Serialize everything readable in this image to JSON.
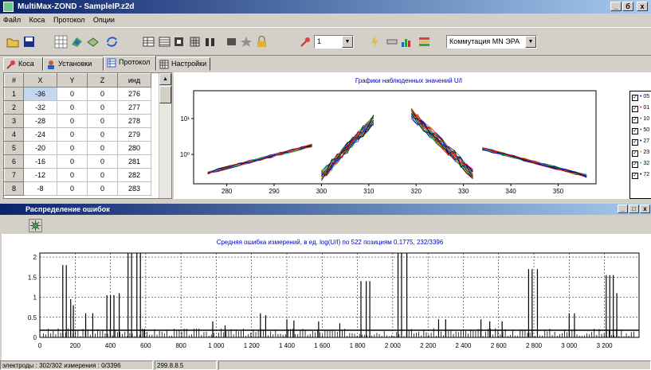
{
  "window": {
    "title": "MultiMax-ZOND - SampleIP.z2d",
    "btn_min": "_",
    "btn_max": "б",
    "btn_close": "x"
  },
  "menu": [
    "Файл",
    "Коса",
    "Протокол",
    "Опции"
  ],
  "toolbar": {
    "icons": [
      "open-icon",
      "save-icon",
      "grid-toggle-icon",
      "map-3d-icon",
      "layers-icon",
      "refresh-icon",
      "table-icon",
      "table-alt-icon",
      "columns-icon",
      "grid-icon",
      "binoculars-icon",
      "block-icon",
      "star-icon",
      "lock-icon",
      "electrode-pin-icon",
      "lightning-icon",
      "battery-icon",
      "bar-chart-icon",
      "palette-icon"
    ],
    "number_combo": "1",
    "commutation_combo": "Коммутация MN ЭРА"
  },
  "tabs": [
    {
      "label": "Коса",
      "icon": "pin-icon",
      "active": false
    },
    {
      "label": "Установки",
      "icon": "user-icon",
      "active": false
    },
    {
      "label": "Протокол",
      "icon": "table-icon",
      "active": true
    },
    {
      "label": "Настройки",
      "icon": "settings-grid-icon",
      "active": false
    }
  ],
  "table": {
    "headers": [
      "#",
      "X",
      "Y",
      "Z",
      "инд"
    ],
    "rows": [
      [
        "1",
        "-36",
        "0",
        "0",
        "276"
      ],
      [
        "2",
        "-32",
        "0",
        "0",
        "277"
      ],
      [
        "3",
        "-28",
        "0",
        "0",
        "278"
      ],
      [
        "4",
        "-24",
        "0",
        "0",
        "279"
      ],
      [
        "5",
        "-20",
        "0",
        "0",
        "280"
      ],
      [
        "6",
        "-16",
        "0",
        "0",
        "281"
      ],
      [
        "7",
        "-12",
        "0",
        "0",
        "282"
      ],
      [
        "8",
        "-8",
        "0",
        "0",
        "283"
      ]
    ]
  },
  "obs_chart": {
    "title": "Графики наблюденных значений U/I",
    "y_ticks": [
      "10¹",
      "10⁰"
    ],
    "x_ticks": [
      "280",
      "290",
      "300",
      "310",
      "320",
      "330",
      "340",
      "350"
    ],
    "legend": [
      "05",
      "01",
      "10",
      "50",
      "27",
      "23",
      "32",
      "72"
    ],
    "series_colors": [
      "#0000ff",
      "#ff0000",
      "#808000",
      "#00a000",
      "#000080",
      "#ff8000",
      "#00c0c0",
      "#000000"
    ]
  },
  "error_window": {
    "title": "Распределение ошибок",
    "tool_icon": "settings-gear-icon",
    "btn_min": "_",
    "btn_max": "□",
    "btn_close": "x"
  },
  "chart_data": [
    {
      "type": "line",
      "title": "Графики наблюденных значений U/I",
      "x_ticks": [
        280,
        290,
        300,
        310,
        320,
        330,
        340,
        350
      ],
      "y_scale": "log",
      "y_ticks": [
        "10^1",
        "10^0"
      ],
      "legend_placement": "right",
      "series": [
        {
          "name": "05"
        },
        {
          "name": "01"
        },
        {
          "name": "10"
        },
        {
          "name": "50"
        },
        {
          "name": "27"
        },
        {
          "name": "23"
        },
        {
          "name": "32"
        },
        {
          "name": "72"
        }
      ]
    },
    {
      "type": "bar",
      "title": "Средняя ошибка измерений, в ед. log(U/I) по 522 позициям  0.1775, 232/3396",
      "xlim": [
        0,
        3396
      ],
      "ylim": [
        0,
        2.1
      ],
      "x_ticks": [
        "0",
        "200",
        "400",
        "600",
        "800",
        "1 000",
        "1 200",
        "1 400",
        "1 600",
        "1 800",
        "2 000",
        "2 200",
        "2 400",
        "2 600",
        "2 800",
        "3 000",
        "3 200"
      ],
      "y_ticks": [
        "0",
        "0.5",
        "1",
        "1.5",
        "2"
      ],
      "mean_line": 0.1775,
      "grid": true,
      "peaks": [
        {
          "x": 130,
          "y": 1.8
        },
        {
          "x": 150,
          "y": 1.8
        },
        {
          "x": 175,
          "y": 0.95
        },
        {
          "x": 190,
          "y": 0.8
        },
        {
          "x": 260,
          "y": 0.6
        },
        {
          "x": 300,
          "y": 0.6
        },
        {
          "x": 380,
          "y": 1.05
        },
        {
          "x": 400,
          "y": 1.05
        },
        {
          "x": 420,
          "y": 1.05
        },
        {
          "x": 450,
          "y": 1.1
        },
        {
          "x": 500,
          "y": 2.1
        },
        {
          "x": 520,
          "y": 2.1
        },
        {
          "x": 550,
          "y": 2.1
        },
        {
          "x": 570,
          "y": 2.1
        },
        {
          "x": 590,
          "y": 0.2
        },
        {
          "x": 980,
          "y": 0.4
        },
        {
          "x": 1050,
          "y": 0.3
        },
        {
          "x": 1250,
          "y": 0.6
        },
        {
          "x": 1280,
          "y": 0.55
        },
        {
          "x": 1400,
          "y": 0.45
        },
        {
          "x": 1440,
          "y": 0.42
        },
        {
          "x": 1580,
          "y": 0.4
        },
        {
          "x": 1700,
          "y": 0.35
        },
        {
          "x": 1820,
          "y": 1.4
        },
        {
          "x": 1850,
          "y": 1.4
        },
        {
          "x": 1870,
          "y": 1.4
        },
        {
          "x": 2030,
          "y": 2.1
        },
        {
          "x": 2050,
          "y": 2.1
        },
        {
          "x": 2080,
          "y": 2.1
        },
        {
          "x": 2260,
          "y": 0.45
        },
        {
          "x": 2300,
          "y": 0.45
        },
        {
          "x": 2500,
          "y": 0.45
        },
        {
          "x": 2550,
          "y": 0.4
        },
        {
          "x": 2620,
          "y": 0.4
        },
        {
          "x": 2770,
          "y": 1.7
        },
        {
          "x": 2790,
          "y": 1.7
        },
        {
          "x": 2820,
          "y": 1.7
        },
        {
          "x": 3000,
          "y": 0.6
        },
        {
          "x": 3030,
          "y": 0.6
        },
        {
          "x": 3210,
          "y": 1.55
        },
        {
          "x": 3230,
          "y": 1.55
        },
        {
          "x": 3250,
          "y": 1.55
        },
        {
          "x": 3270,
          "y": 1.1
        }
      ]
    }
  ],
  "status": {
    "electrodes": "электроды : 302/302 измерения : 0/3396",
    "version": "299.8.8.5"
  }
}
